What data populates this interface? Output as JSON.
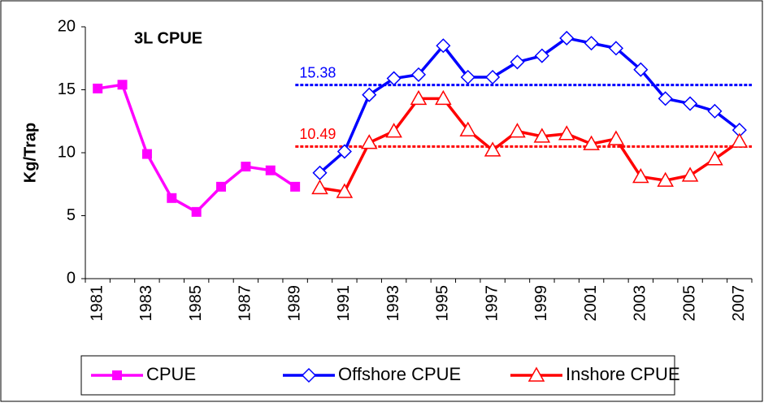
{
  "chart_data": {
    "type": "line",
    "title": "3L CPUE",
    "y_label": "Kg/Trap",
    "categories": [
      "1981",
      null,
      "1983",
      null,
      "1985",
      null,
      "1987",
      null,
      "1989",
      null,
      "1991",
      null,
      "1993",
      null,
      "1995",
      null,
      "1997",
      null,
      "1999",
      null,
      "2001",
      null,
      "2003",
      null,
      "2005",
      null,
      "2007"
    ],
    "series": [
      {
        "name": "CPUE",
        "color": "#ff00ff",
        "marker": "square",
        "values": [
          15.1,
          15.4,
          9.9,
          6.4,
          5.3,
          7.3,
          8.9,
          8.6,
          7.3,
          null,
          null,
          null,
          null,
          null,
          null,
          null,
          null,
          null,
          null,
          null,
          null,
          null,
          null,
          null,
          null,
          null,
          null
        ]
      },
      {
        "name": "Offshore CPUE",
        "color": "#0000ff",
        "marker": "diamond",
        "values": [
          null,
          null,
          null,
          null,
          null,
          null,
          null,
          null,
          null,
          8.4,
          10.1,
          14.6,
          15.9,
          16.2,
          18.5,
          16.0,
          16.0,
          17.2,
          17.7,
          19.1,
          18.7,
          18.3,
          16.6,
          14.3,
          13.9,
          13.3,
          11.8
        ]
      },
      {
        "name": "Inshore CPUE",
        "color": "#ff0000",
        "marker": "triangle",
        "values": [
          null,
          null,
          null,
          null,
          null,
          null,
          null,
          null,
          null,
          7.2,
          6.9,
          10.8,
          11.7,
          14.3,
          14.3,
          11.8,
          10.2,
          11.7,
          11.3,
          11.5,
          10.7,
          11.1,
          8.1,
          7.8,
          8.2,
          9.5,
          10.9
        ]
      }
    ],
    "reference_lines": [
      {
        "value": 15.38,
        "color": "#0000ff"
      },
      {
        "value": 10.49,
        "color": "#ff0000"
      }
    ],
    "ylim": [
      0,
      20
    ],
    "yticks": [
      0,
      5,
      10,
      15,
      20
    ],
    "grid": false
  }
}
